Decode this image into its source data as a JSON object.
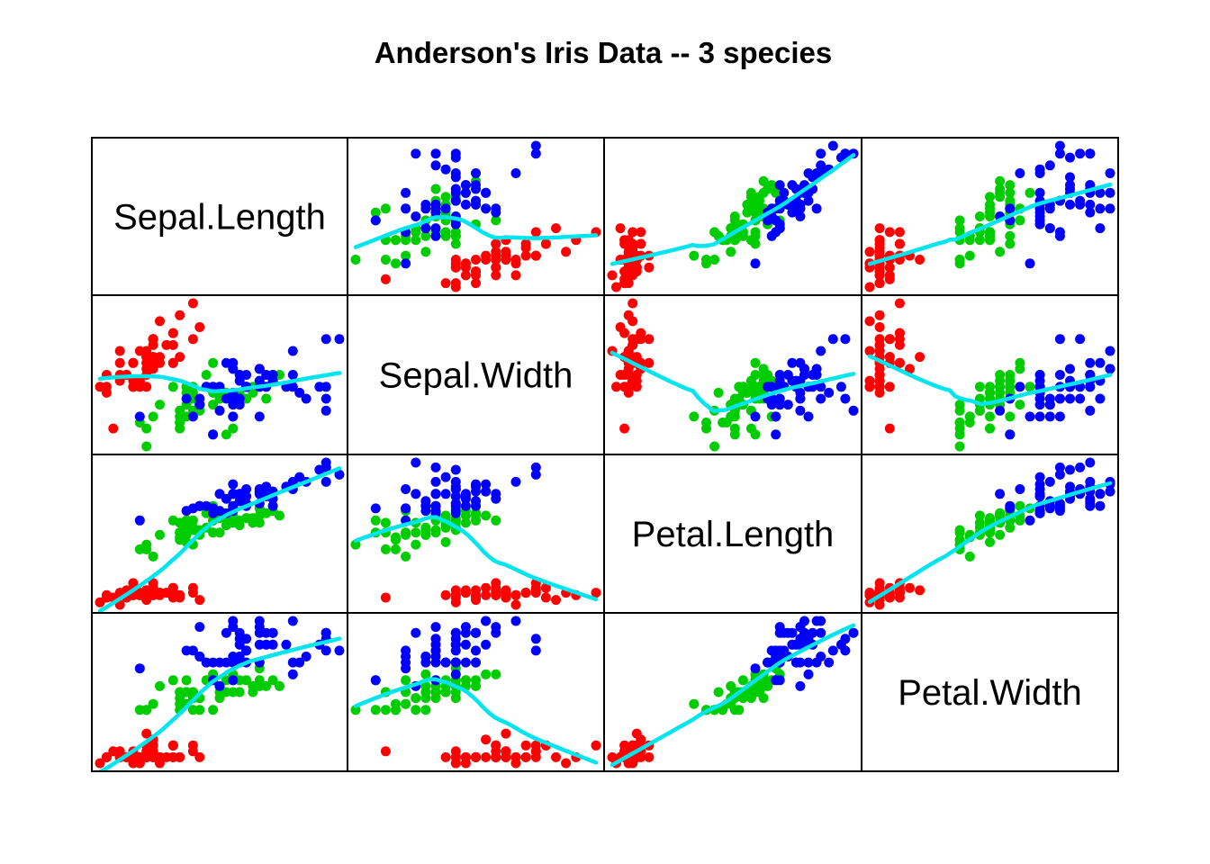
{
  "chart_data": {
    "type": "scatter",
    "title": "Anderson's Iris Data -- 3 species",
    "variables": [
      "Sepal.Length",
      "Sepal.Width",
      "Petal.Length",
      "Petal.Width"
    ],
    "ranges": {
      "Sepal.Length": [
        4.3,
        7.9
      ],
      "Sepal.Width": [
        2.0,
        4.4
      ],
      "Petal.Length": [
        1.0,
        6.9
      ],
      "Petal.Width": [
        0.1,
        2.5
      ]
    },
    "grid": false,
    "legend": "none",
    "smoother_color": "#00E5EE",
    "groups": [
      {
        "color": "#FF0000",
        "points": [
          [
            5.1,
            3.5,
            1.4,
            0.2
          ],
          [
            4.9,
            3.0,
            1.4,
            0.2
          ],
          [
            4.7,
            3.2,
            1.3,
            0.2
          ],
          [
            4.6,
            3.1,
            1.5,
            0.2
          ],
          [
            5.0,
            3.6,
            1.4,
            0.2
          ],
          [
            5.4,
            3.9,
            1.7,
            0.4
          ],
          [
            4.6,
            3.4,
            1.4,
            0.3
          ],
          [
            5.0,
            3.4,
            1.5,
            0.2
          ],
          [
            4.4,
            2.9,
            1.4,
            0.2
          ],
          [
            4.9,
            3.1,
            1.5,
            0.1
          ],
          [
            5.4,
            3.7,
            1.5,
            0.2
          ],
          [
            4.8,
            3.4,
            1.6,
            0.2
          ],
          [
            4.8,
            3.0,
            1.4,
            0.1
          ],
          [
            4.3,
            3.0,
            1.1,
            0.1
          ],
          [
            5.8,
            4.0,
            1.2,
            0.2
          ],
          [
            5.7,
            4.4,
            1.5,
            0.4
          ],
          [
            5.4,
            3.9,
            1.3,
            0.4
          ],
          [
            5.1,
            3.5,
            1.4,
            0.3
          ],
          [
            5.7,
            3.8,
            1.7,
            0.3
          ],
          [
            5.1,
            3.8,
            1.5,
            0.3
          ],
          [
            5.4,
            3.4,
            1.7,
            0.2
          ],
          [
            5.1,
            3.7,
            1.5,
            0.4
          ],
          [
            4.6,
            3.6,
            1.0,
            0.2
          ],
          [
            5.1,
            3.3,
            1.7,
            0.5
          ],
          [
            4.8,
            3.4,
            1.9,
            0.2
          ],
          [
            5.0,
            3.0,
            1.6,
            0.2
          ],
          [
            5.0,
            3.4,
            1.6,
            0.4
          ],
          [
            5.2,
            3.5,
            1.5,
            0.2
          ],
          [
            5.2,
            3.4,
            1.4,
            0.2
          ],
          [
            4.7,
            3.2,
            1.6,
            0.2
          ],
          [
            4.8,
            3.1,
            1.6,
            0.2
          ],
          [
            5.4,
            3.4,
            1.5,
            0.4
          ],
          [
            5.2,
            4.1,
            1.5,
            0.1
          ],
          [
            5.5,
            4.2,
            1.4,
            0.2
          ],
          [
            4.9,
            3.1,
            1.5,
            0.2
          ],
          [
            5.0,
            3.2,
            1.2,
            0.2
          ],
          [
            5.5,
            3.5,
            1.3,
            0.2
          ],
          [
            4.9,
            3.6,
            1.4,
            0.1
          ],
          [
            4.4,
            3.0,
            1.3,
            0.2
          ],
          [
            5.1,
            3.4,
            1.5,
            0.2
          ],
          [
            5.0,
            3.5,
            1.3,
            0.3
          ],
          [
            4.5,
            2.3,
            1.3,
            0.3
          ],
          [
            4.4,
            3.2,
            1.3,
            0.2
          ],
          [
            5.0,
            3.5,
            1.6,
            0.6
          ],
          [
            5.1,
            3.8,
            1.9,
            0.4
          ],
          [
            4.8,
            3.0,
            1.4,
            0.3
          ],
          [
            5.1,
            3.8,
            1.6,
            0.2
          ],
          [
            4.6,
            3.2,
            1.4,
            0.2
          ],
          [
            5.3,
            3.7,
            1.5,
            0.2
          ],
          [
            5.0,
            3.3,
            1.4,
            0.2
          ]
        ]
      },
      {
        "color": "#00CD00",
        "points": [
          [
            7.0,
            3.2,
            4.7,
            1.4
          ],
          [
            6.4,
            3.2,
            4.5,
            1.5
          ],
          [
            6.9,
            3.1,
            4.9,
            1.5
          ],
          [
            5.5,
            2.3,
            4.0,
            1.3
          ],
          [
            6.5,
            2.8,
            4.6,
            1.5
          ],
          [
            5.7,
            2.8,
            4.5,
            1.3
          ],
          [
            6.3,
            3.3,
            4.7,
            1.6
          ],
          [
            4.9,
            2.4,
            3.3,
            1.0
          ],
          [
            6.6,
            2.9,
            4.6,
            1.3
          ],
          [
            5.2,
            2.7,
            3.9,
            1.4
          ],
          [
            5.0,
            2.0,
            3.5,
            1.0
          ],
          [
            5.9,
            3.0,
            4.2,
            1.5
          ],
          [
            6.0,
            2.2,
            4.0,
            1.0
          ],
          [
            6.1,
            2.9,
            4.7,
            1.4
          ],
          [
            5.6,
            2.9,
            3.6,
            1.3
          ],
          [
            6.7,
            3.1,
            4.4,
            1.4
          ],
          [
            5.6,
            3.0,
            4.5,
            1.5
          ],
          [
            5.8,
            2.7,
            4.1,
            1.0
          ],
          [
            6.2,
            2.2,
            4.5,
            1.5
          ],
          [
            5.6,
            2.5,
            3.9,
            1.1
          ],
          [
            5.9,
            3.2,
            4.8,
            1.8
          ],
          [
            6.1,
            2.8,
            4.0,
            1.3
          ],
          [
            6.3,
            2.5,
            4.9,
            1.5
          ],
          [
            6.1,
            2.8,
            4.7,
            1.2
          ],
          [
            6.4,
            2.9,
            4.3,
            1.3
          ],
          [
            6.6,
            3.0,
            4.4,
            1.4
          ],
          [
            6.8,
            2.8,
            4.8,
            1.4
          ],
          [
            6.7,
            3.0,
            5.0,
            1.7
          ],
          [
            6.0,
            2.9,
            4.5,
            1.5
          ],
          [
            5.7,
            2.6,
            3.5,
            1.0
          ],
          [
            5.5,
            2.4,
            3.8,
            1.1
          ],
          [
            5.5,
            2.4,
            3.7,
            1.0
          ],
          [
            5.8,
            2.7,
            3.9,
            1.2
          ],
          [
            6.0,
            2.7,
            5.1,
            1.6
          ],
          [
            5.4,
            3.0,
            4.5,
            1.5
          ],
          [
            6.0,
            3.4,
            4.5,
            1.6
          ],
          [
            6.7,
            3.1,
            4.7,
            1.5
          ],
          [
            6.3,
            2.3,
            4.4,
            1.3
          ],
          [
            5.6,
            3.0,
            4.1,
            1.3
          ],
          [
            5.5,
            2.5,
            4.0,
            1.3
          ],
          [
            5.5,
            2.6,
            4.4,
            1.2
          ],
          [
            6.1,
            3.0,
            4.6,
            1.4
          ],
          [
            5.8,
            2.6,
            4.0,
            1.2
          ],
          [
            5.0,
            2.3,
            3.3,
            1.0
          ],
          [
            5.6,
            2.7,
            4.2,
            1.3
          ],
          [
            5.7,
            3.0,
            4.2,
            1.2
          ],
          [
            5.7,
            2.9,
            4.2,
            1.3
          ],
          [
            6.2,
            2.9,
            4.3,
            1.3
          ],
          [
            5.1,
            2.5,
            3.0,
            1.1
          ],
          [
            5.7,
            2.8,
            4.1,
            1.3
          ]
        ]
      },
      {
        "color": "#0000FF",
        "points": [
          [
            6.3,
            3.3,
            6.0,
            2.5
          ],
          [
            5.8,
            2.7,
            5.1,
            1.9
          ],
          [
            7.1,
            3.0,
            5.9,
            2.1
          ],
          [
            6.3,
            2.9,
            5.6,
            1.8
          ],
          [
            6.5,
            3.0,
            5.8,
            2.2
          ],
          [
            7.6,
            3.0,
            6.6,
            2.1
          ],
          [
            4.9,
            2.5,
            4.5,
            1.7
          ],
          [
            7.3,
            2.9,
            6.3,
            1.8
          ],
          [
            6.7,
            2.5,
            5.8,
            1.8
          ],
          [
            7.2,
            3.6,
            6.1,
            2.5
          ],
          [
            6.5,
            3.2,
            5.1,
            2.0
          ],
          [
            6.4,
            2.7,
            5.3,
            1.9
          ],
          [
            6.8,
            3.0,
            5.5,
            2.1
          ],
          [
            5.7,
            2.5,
            5.0,
            2.0
          ],
          [
            5.8,
            2.8,
            5.1,
            2.4
          ],
          [
            6.4,
            3.2,
            5.3,
            2.3
          ],
          [
            6.5,
            3.0,
            5.5,
            1.8
          ],
          [
            7.7,
            3.8,
            6.7,
            2.2
          ],
          [
            7.7,
            2.6,
            6.9,
            2.3
          ],
          [
            6.0,
            2.2,
            5.0,
            1.5
          ],
          [
            6.9,
            3.2,
            5.7,
            2.3
          ],
          [
            5.6,
            2.8,
            4.9,
            2.0
          ],
          [
            7.7,
            2.8,
            6.7,
            2.0
          ],
          [
            6.3,
            2.7,
            4.9,
            1.8
          ],
          [
            6.7,
            3.3,
            5.7,
            2.1
          ],
          [
            7.2,
            3.2,
            6.0,
            1.8
          ],
          [
            6.2,
            2.8,
            4.8,
            1.8
          ],
          [
            6.1,
            3.0,
            4.9,
            1.8
          ],
          [
            6.4,
            2.8,
            5.6,
            2.1
          ],
          [
            7.2,
            3.0,
            5.8,
            1.6
          ],
          [
            7.4,
            2.8,
            6.1,
            1.9
          ],
          [
            7.9,
            3.8,
            6.4,
            2.0
          ],
          [
            6.4,
            2.8,
            5.6,
            2.2
          ],
          [
            6.3,
            2.8,
            5.1,
            1.5
          ],
          [
            6.1,
            2.6,
            5.6,
            1.4
          ],
          [
            7.7,
            3.0,
            6.1,
            2.3
          ],
          [
            6.3,
            3.4,
            5.6,
            2.4
          ],
          [
            6.4,
            3.1,
            5.5,
            1.8
          ],
          [
            6.0,
            3.0,
            4.8,
            1.8
          ],
          [
            6.9,
            3.1,
            5.4,
            2.1
          ],
          [
            6.7,
            3.1,
            5.6,
            2.4
          ],
          [
            6.9,
            3.1,
            5.1,
            2.3
          ],
          [
            5.8,
            2.7,
            5.1,
            1.9
          ],
          [
            6.8,
            3.2,
            5.9,
            2.3
          ],
          [
            6.7,
            3.3,
            5.7,
            2.5
          ],
          [
            6.7,
            3.0,
            5.2,
            2.3
          ],
          [
            6.3,
            2.5,
            5.0,
            1.9
          ],
          [
            6.5,
            3.0,
            5.2,
            2.0
          ],
          [
            6.2,
            3.4,
            5.4,
            2.3
          ],
          [
            5.9,
            3.0,
            5.1,
            1.8
          ]
        ]
      }
    ]
  }
}
